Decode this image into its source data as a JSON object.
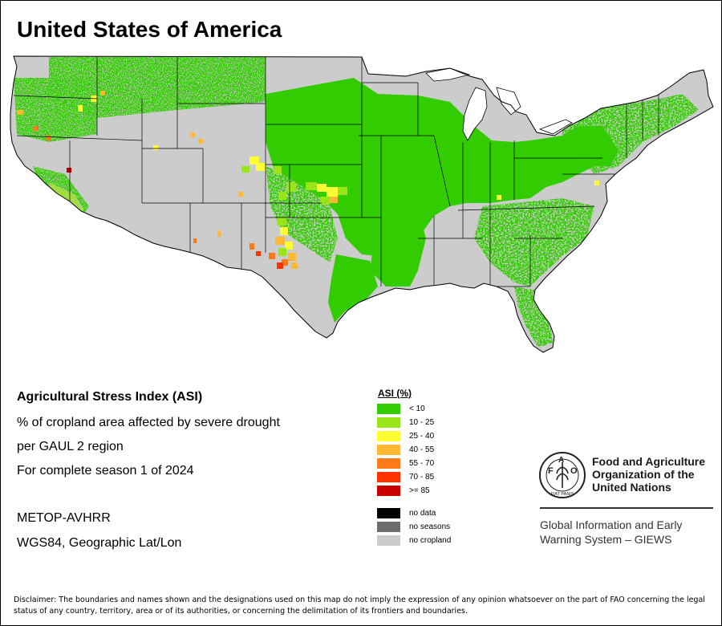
{
  "title": "United States of America",
  "info": {
    "line1": "Agricultural Stress Index (ASI)",
    "line2": "% of cropland area affected by severe drought",
    "line3": "per GAUL 2 region",
    "line4": "For complete season 1 of 2024",
    "sensor": "METOP-AVHRR",
    "projection": "WGS84, Geographic Lat/Lon"
  },
  "legend": {
    "title": "ASI (%)",
    "classes": [
      {
        "label": "< 10",
        "color": "#33cc00"
      },
      {
        "label": "10 - 25",
        "color": "#99e51a"
      },
      {
        "label": "25 - 40",
        "color": "#ffff33"
      },
      {
        "label": "40 - 55",
        "color": "#ffb833"
      },
      {
        "label": "55 - 70",
        "color": "#ff7a1a"
      },
      {
        "label": "70 - 85",
        "color": "#ff3300"
      },
      {
        "label": ">= 85",
        "color": "#c80000"
      }
    ],
    "other": [
      {
        "label": "no data",
        "color": "#000000"
      },
      {
        "label": "no seasons",
        "color": "#6e6e6e"
      },
      {
        "label": "no cropland",
        "color": "#cccccc"
      }
    ]
  },
  "logo": {
    "initials": "FAO",
    "motto": "FIAT PANIS",
    "name_line1": "Food and Agriculture",
    "name_line2": "Organization of the",
    "name_line3": "United Nations",
    "giews_line1": "Global Information and Early",
    "giews_line2": "Warning System – GIEWS"
  },
  "disclaimer": "Disclaimer: The boundaries and names shown and the designations used on this map do not imply the expression of any opinion whatsoever on the part of FAO concerning the legal status of any country, territory, area or of its authorities, or concerning the delimitation of its frontiers and boundaries.",
  "colors": {
    "no_cropland": "#cccccc",
    "low_stress": "#33cc00",
    "border": "#000000",
    "background": "#ffffff"
  }
}
